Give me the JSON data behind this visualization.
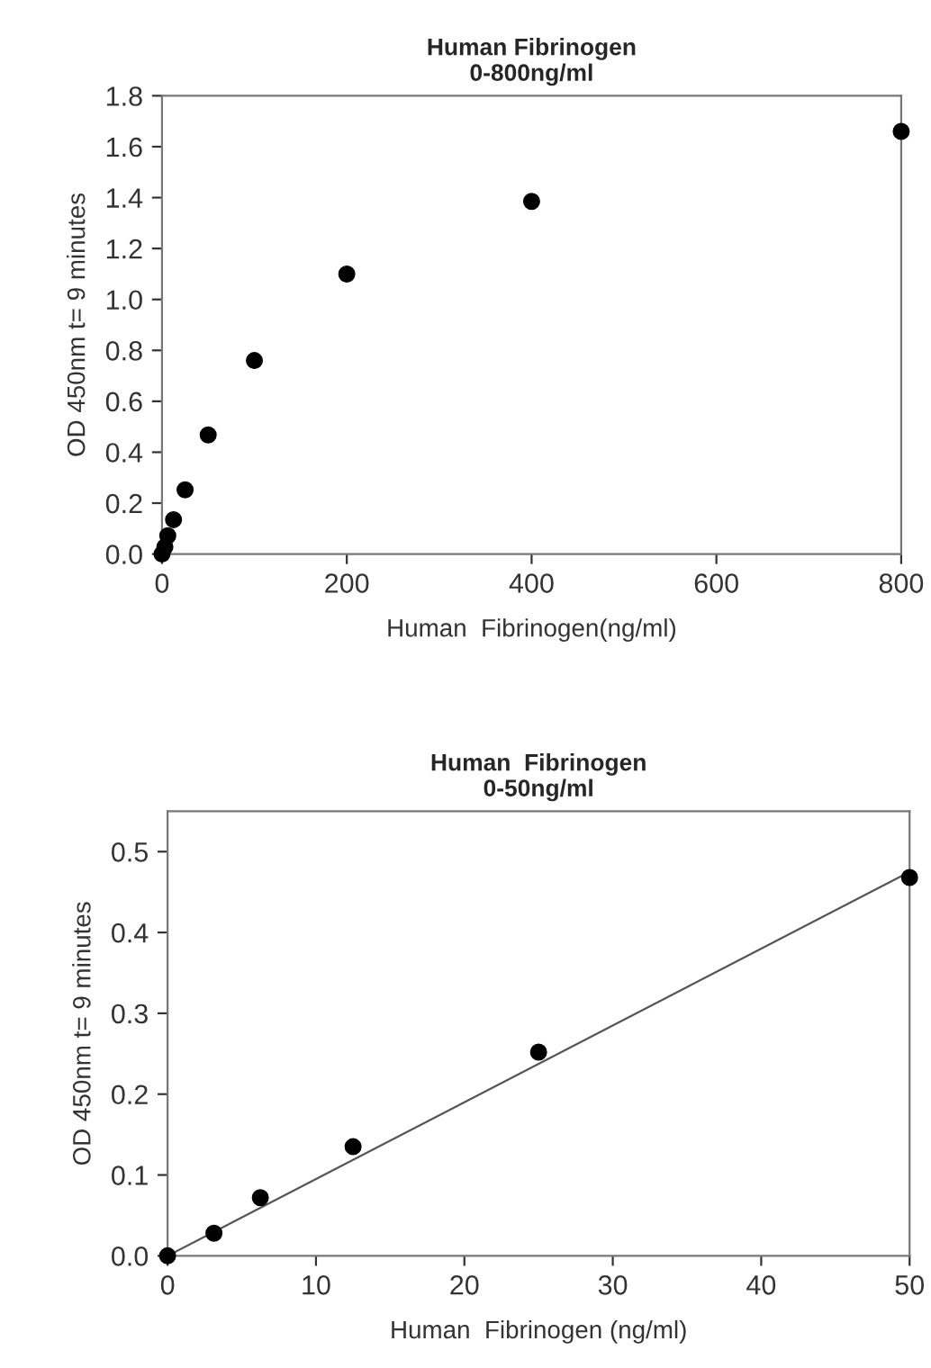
{
  "chart_data": [
    {
      "type": "scatter",
      "title": "Human Fibrinogen",
      "subtitle": "0-800ng/ml",
      "xlabel": "Human  Fibrinogen(ng/ml)",
      "ylabel": "OD 450nm t= 9 minutes",
      "series": [
        {
          "color": "#000000",
          "marker": "circle",
          "x": [
            0,
            3.125,
            6.25,
            12.5,
            25,
            50,
            100,
            200,
            400,
            800
          ],
          "values": [
            0,
            0.028,
            0.072,
            0.135,
            0.252,
            0.468,
            0.76,
            1.1,
            1.385,
            1.66
          ]
        }
      ],
      "xlim": [
        0,
        800
      ],
      "xticks": [
        0,
        200,
        400,
        600,
        800
      ],
      "ylim": [
        0,
        1.8
      ],
      "yticks": [
        {
          "value": 0,
          "label": "0.0"
        },
        {
          "value": 0.2,
          "label": "0.2"
        },
        {
          "value": 0.4,
          "label": "0.4"
        },
        {
          "value": 0.6,
          "label": "0.6"
        },
        {
          "value": 0.8,
          "label": "0.8"
        },
        {
          "value": 1.0,
          "label": "1.0"
        },
        {
          "value": 1.2,
          "label": "1.2"
        },
        {
          "value": 1.4,
          "label": "1.4"
        },
        {
          "value": 1.6,
          "label": "1.6"
        },
        {
          "value": 1.8,
          "label": "1.8"
        }
      ],
      "grid": false,
      "legend": false
    },
    {
      "type": "scatter",
      "title": "Human  Fibrinogen",
      "subtitle": "0-50ng/ml",
      "xlabel": "Human  Fibrinogen (ng/ml)",
      "ylabel": "OD 450nm t= 9 minutes",
      "series": [
        {
          "color": "#000000",
          "marker": "circle",
          "x": [
            0,
            3.125,
            6.25,
            12.5,
            25,
            50
          ],
          "values": [
            0,
            0.028,
            0.072,
            0.135,
            0.252,
            0.468
          ]
        },
        {
          "type": "line",
          "color": "#555555",
          "x": [
            0,
            50
          ],
          "values": [
            0,
            0.475
          ]
        }
      ],
      "xlim": [
        0,
        50
      ],
      "xticks": [
        0,
        10,
        20,
        30,
        40,
        50
      ],
      "ylim": [
        0,
        0.55
      ],
      "yticks": [
        {
          "value": 0,
          "label": "0.0"
        },
        {
          "value": 0.1,
          "label": "0.1"
        },
        {
          "value": 0.2,
          "label": "0.2"
        },
        {
          "value": 0.3,
          "label": "0.3"
        },
        {
          "value": 0.4,
          "label": "0.4"
        },
        {
          "value": 0.5,
          "label": "0.5"
        }
      ],
      "grid": false,
      "legend": false
    }
  ]
}
